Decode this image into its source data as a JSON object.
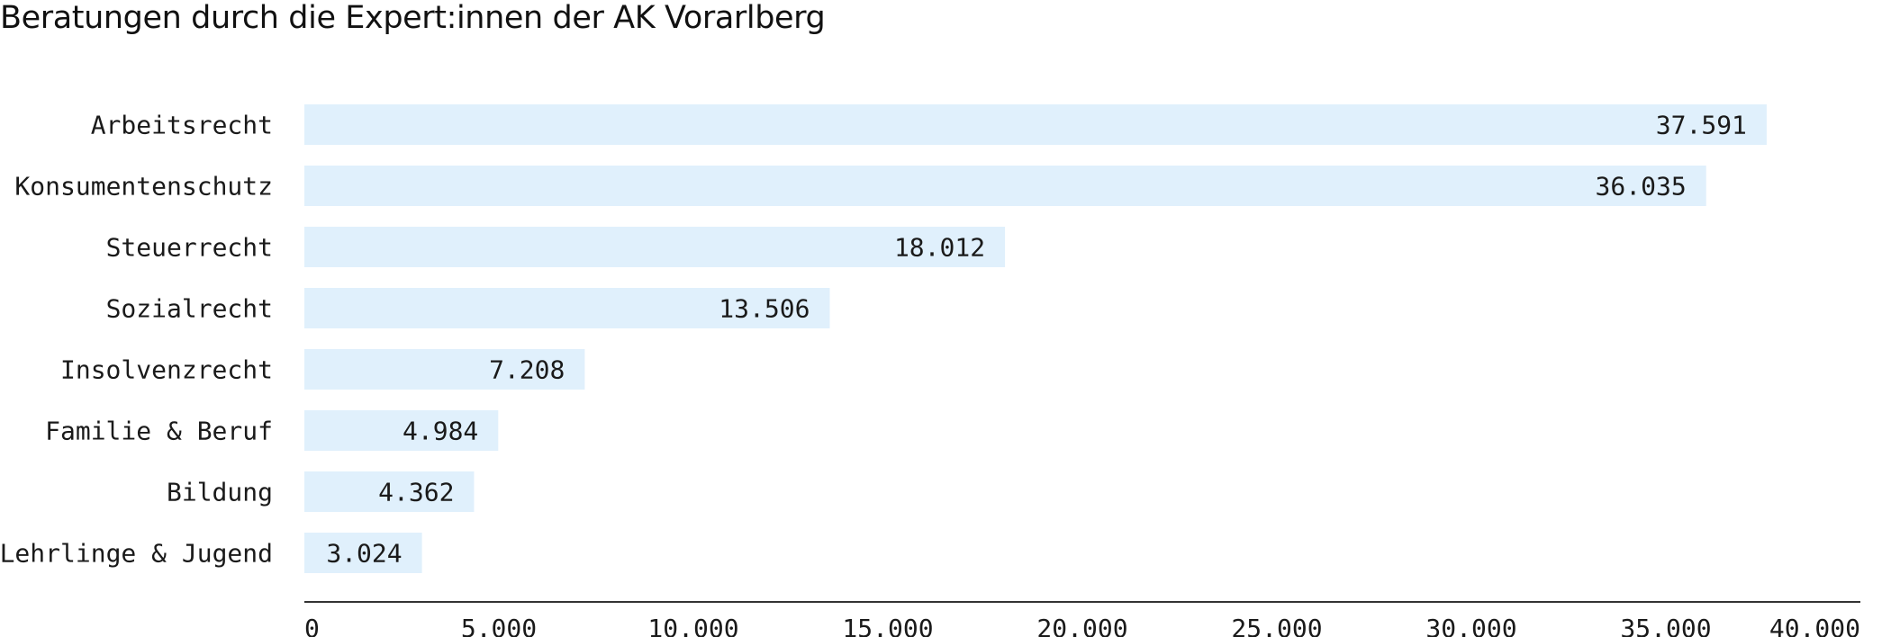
{
  "chart_data": {
    "type": "bar",
    "orientation": "horizontal",
    "title": "Beratungen durch die Expert:innen der AK Vorarlberg",
    "categories": [
      "Arbeitsrecht",
      "Konsumentenschutz",
      "Steuerrecht",
      "Sozialrecht",
      "Insolvenzrecht",
      "Familie & Beruf",
      "Bildung",
      "Lehrlinge & Jugend"
    ],
    "values": [
      37591,
      36035,
      18012,
      13506,
      7208,
      4984,
      4362,
      3024
    ],
    "value_labels": [
      "37.591",
      "36.035",
      "18.012",
      "13.506",
      "7.208",
      "4.984",
      "4.362",
      "3.024"
    ],
    "xlim": [
      0,
      40000
    ],
    "x_ticks": [
      0,
      5000,
      10000,
      15000,
      20000,
      25000,
      30000,
      35000,
      40000
    ],
    "x_tick_labels": [
      "0",
      "5.000",
      "10.000",
      "15.000",
      "20.000",
      "25.000",
      "30.000",
      "35.000",
      "40.000"
    ],
    "xlabel": "",
    "ylabel": "",
    "grid": false,
    "legend": "none",
    "colors": {
      "bar": "#e0f0fc",
      "axis": "#333333",
      "text": "#1a1a1a"
    }
  }
}
